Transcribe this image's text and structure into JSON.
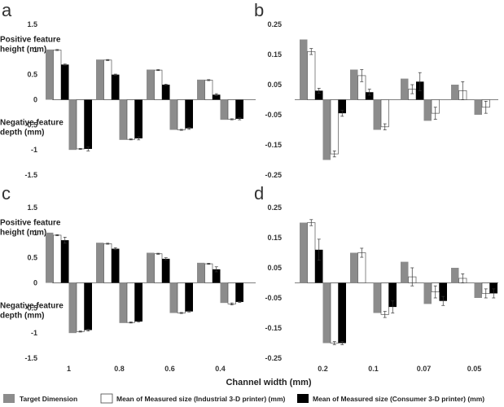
{
  "colors": {
    "target": "#8c8c8c",
    "industrial": "#ffffff",
    "consumer": "#000000",
    "axis": "#555555",
    "text": "#333333"
  },
  "x_axis_label": "Channel width (mm)",
  "legend": [
    {
      "key": "target",
      "label": "Target Dimension"
    },
    {
      "key": "industrial",
      "label": "Mean of Measured size (Industrial 3-D printer) (mm)"
    },
    {
      "key": "consumer",
      "label": "Mean of Measured size (Consumer 3-D printer) (mm)"
    }
  ],
  "chart_data": [
    {
      "panel": "a",
      "type": "bar",
      "ylabel_positive": [
        "Positive feature",
        "height (mm)"
      ],
      "ylabel_negative": [
        "Negative feature",
        "depth (mm)"
      ],
      "ylim": [
        -1.5,
        1.5
      ],
      "yticks": [
        "1.5",
        "1",
        "0.5",
        "0",
        "-0.5",
        "-1",
        "-1.5"
      ],
      "categories": [
        "1",
        "0.8",
        "0.6",
        "0.4"
      ],
      "show_category_labels": false,
      "positive": {
        "target": [
          1.0,
          0.8,
          0.6,
          0.4
        ],
        "industrial": [
          0.99,
          0.79,
          0.59,
          0.39
        ],
        "industrial_err": [
          0.01,
          0.01,
          0.01,
          0.01
        ],
        "consumer": [
          0.7,
          0.5,
          0.3,
          0.1
        ],
        "consumer_err": [
          0.01,
          0.01,
          0.01,
          0.02
        ]
      },
      "negative": {
        "target": [
          -1.0,
          -0.8,
          -0.6,
          -0.4
        ],
        "industrial": [
          -0.98,
          -0.79,
          -0.6,
          -0.39
        ],
        "industrial_err": [
          0.01,
          0.01,
          0.01,
          0.01
        ],
        "consumer": [
          -0.98,
          -0.77,
          -0.57,
          -0.38
        ],
        "consumer_err": [
          0.04,
          0.03,
          0.02,
          0.02
        ]
      }
    },
    {
      "panel": "b",
      "type": "bar",
      "ylim": [
        -0.25,
        0.25
      ],
      "yticks": [
        "0.25",
        "0.15",
        "0.05",
        "-0.05",
        "-0.15",
        "-0.25"
      ],
      "categories": [
        "0.2",
        "0.1",
        "0.07",
        "0.05"
      ],
      "show_category_labels": false,
      "positive": {
        "target": [
          0.2,
          0.1,
          0.07,
          0.05
        ],
        "industrial": [
          0.16,
          0.08,
          0.035,
          0.03
        ],
        "industrial_err": [
          0.01,
          0.02,
          0.015,
          0.03
        ],
        "consumer": [
          0.03,
          0.025,
          0.06,
          null
        ],
        "consumer_err": [
          0.008,
          0.01,
          0.03,
          null
        ]
      },
      "negative": {
        "target": [
          -0.2,
          -0.1,
          -0.07,
          -0.05
        ],
        "industrial": [
          -0.18,
          -0.09,
          -0.045,
          -0.025
        ],
        "industrial_err": [
          0.01,
          0.01,
          0.02,
          0.02
        ],
        "consumer": [
          -0.045,
          null,
          null,
          null
        ],
        "consumer_err": [
          0.01,
          null,
          null,
          null
        ]
      }
    },
    {
      "panel": "c",
      "type": "bar",
      "ylabel_positive": [
        "Positive feature",
        "height (mm)"
      ],
      "ylabel_negative": [
        "Negative feature",
        "depth (mm)"
      ],
      "ylim": [
        -1.5,
        1.5
      ],
      "yticks": [
        "1.5",
        "1",
        "0.5",
        "0",
        "-0.5",
        "-1",
        "-1.5"
      ],
      "categories": [
        "1",
        "0.8",
        "0.6",
        "0.4"
      ],
      "show_category_labels": true,
      "positive": {
        "target": [
          1.0,
          0.8,
          0.6,
          0.4
        ],
        "industrial": [
          0.95,
          0.78,
          0.58,
          0.38
        ],
        "industrial_err": [
          0.01,
          0.01,
          0.01,
          0.01
        ],
        "consumer": [
          0.85,
          0.68,
          0.48,
          0.27
        ],
        "consumer_err": [
          0.06,
          0.02,
          0.02,
          0.05
        ]
      },
      "negative": {
        "target": [
          -1.0,
          -0.8,
          -0.6,
          -0.4
        ],
        "industrial": [
          -0.97,
          -0.79,
          -0.6,
          -0.42
        ],
        "industrial_err": [
          0.01,
          0.01,
          0.01,
          0.02
        ],
        "consumer": [
          -0.94,
          -0.77,
          -0.57,
          -0.38
        ],
        "consumer_err": [
          0.02,
          0.01,
          0.01,
          0.01
        ]
      }
    },
    {
      "panel": "d",
      "type": "bar",
      "ylim": [
        -0.25,
        0.25
      ],
      "yticks": [
        "0.25",
        "0.15",
        "0.05",
        "-0.05",
        "-0.15",
        "-0.25"
      ],
      "categories": [
        "0.2",
        "0.1",
        "0.07",
        "0.05"
      ],
      "show_category_labels": true,
      "positive": {
        "target": [
          0.2,
          0.1,
          0.07,
          0.05
        ],
        "industrial": [
          0.2,
          0.1,
          0.02,
          0.015
        ],
        "industrial_err": [
          0.01,
          0.015,
          0.03,
          0.015
        ],
        "consumer": [
          0.11,
          null,
          null,
          null
        ],
        "consumer_err": [
          0.035,
          null,
          null,
          null
        ]
      },
      "negative": {
        "target": [
          -0.2,
          -0.1,
          -0.07,
          -0.05
        ],
        "industrial": [
          -0.2,
          -0.105,
          -0.03,
          -0.035
        ],
        "industrial_err": [
          0.005,
          0.01,
          0.02,
          0.015
        ],
        "consumer": [
          -0.2,
          -0.08,
          -0.06,
          -0.035
        ],
        "consumer_err": [
          0.005,
          0.02,
          0.015,
          0.015
        ]
      }
    }
  ]
}
